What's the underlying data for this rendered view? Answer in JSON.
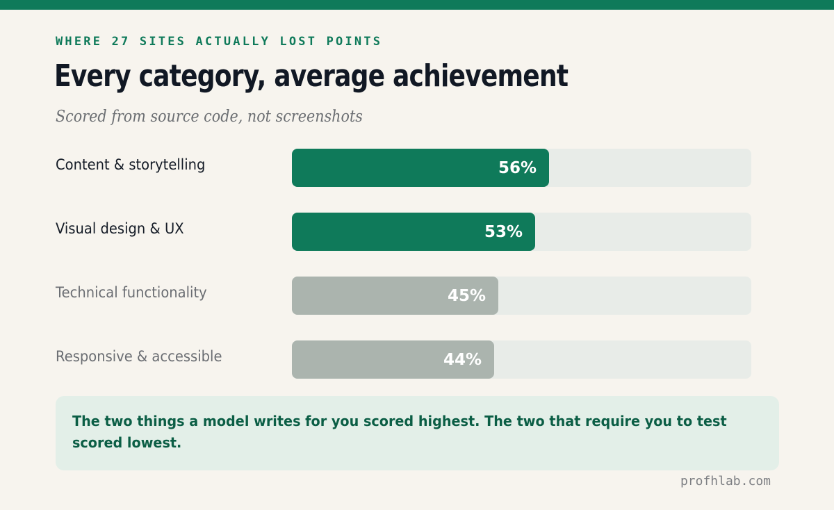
{
  "header": {
    "eyebrow": "WHERE 27 SITES ACTUALLY LOST POINTS",
    "title": "Every category, average achievement",
    "subtitle": "Scored from source code, not screenshots"
  },
  "colors": {
    "accent": "#0f7a5a",
    "muted_bar": "#abb4ae",
    "track": "#e8ece8",
    "background": "#f7f4ee",
    "callout_bg": "#e3efe8",
    "callout_text": "#0b5e45"
  },
  "chart_data": {
    "type": "bar",
    "orientation": "horizontal",
    "categories": [
      "Content & storytelling",
      "Visual design & UX",
      "Technical functionality",
      "Responsive & accessible"
    ],
    "values": [
      56,
      53,
      45,
      44
    ],
    "value_labels": [
      "56%",
      "53%",
      "45%",
      "44%"
    ],
    "highlighted": [
      true,
      true,
      false,
      false
    ],
    "xlim": [
      0,
      100
    ],
    "unit": "%",
    "title": "Every category, average achievement",
    "subtitle": "Scored from source code, not screenshots",
    "grid": false,
    "legend": "none"
  },
  "callout": {
    "text": "The two things a model writes for you scored highest. The two that require you to test scored lowest."
  },
  "footer": {
    "source": "profhlab.com"
  }
}
